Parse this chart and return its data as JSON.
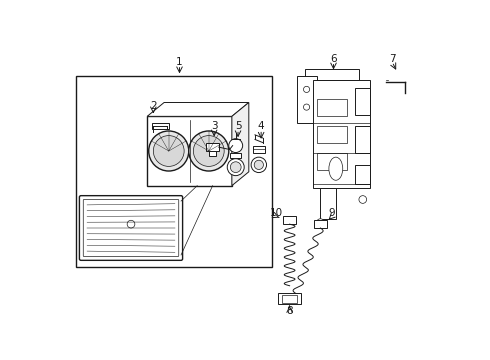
{
  "bg_color": "#ffffff",
  "line_color": "#1a1a1a",
  "figsize": [
    4.9,
    3.6
  ],
  "dpi": 100,
  "lw_main": 1.0,
  "lw_med": 0.7,
  "lw_thin": 0.5,
  "fs_label": 7.5
}
